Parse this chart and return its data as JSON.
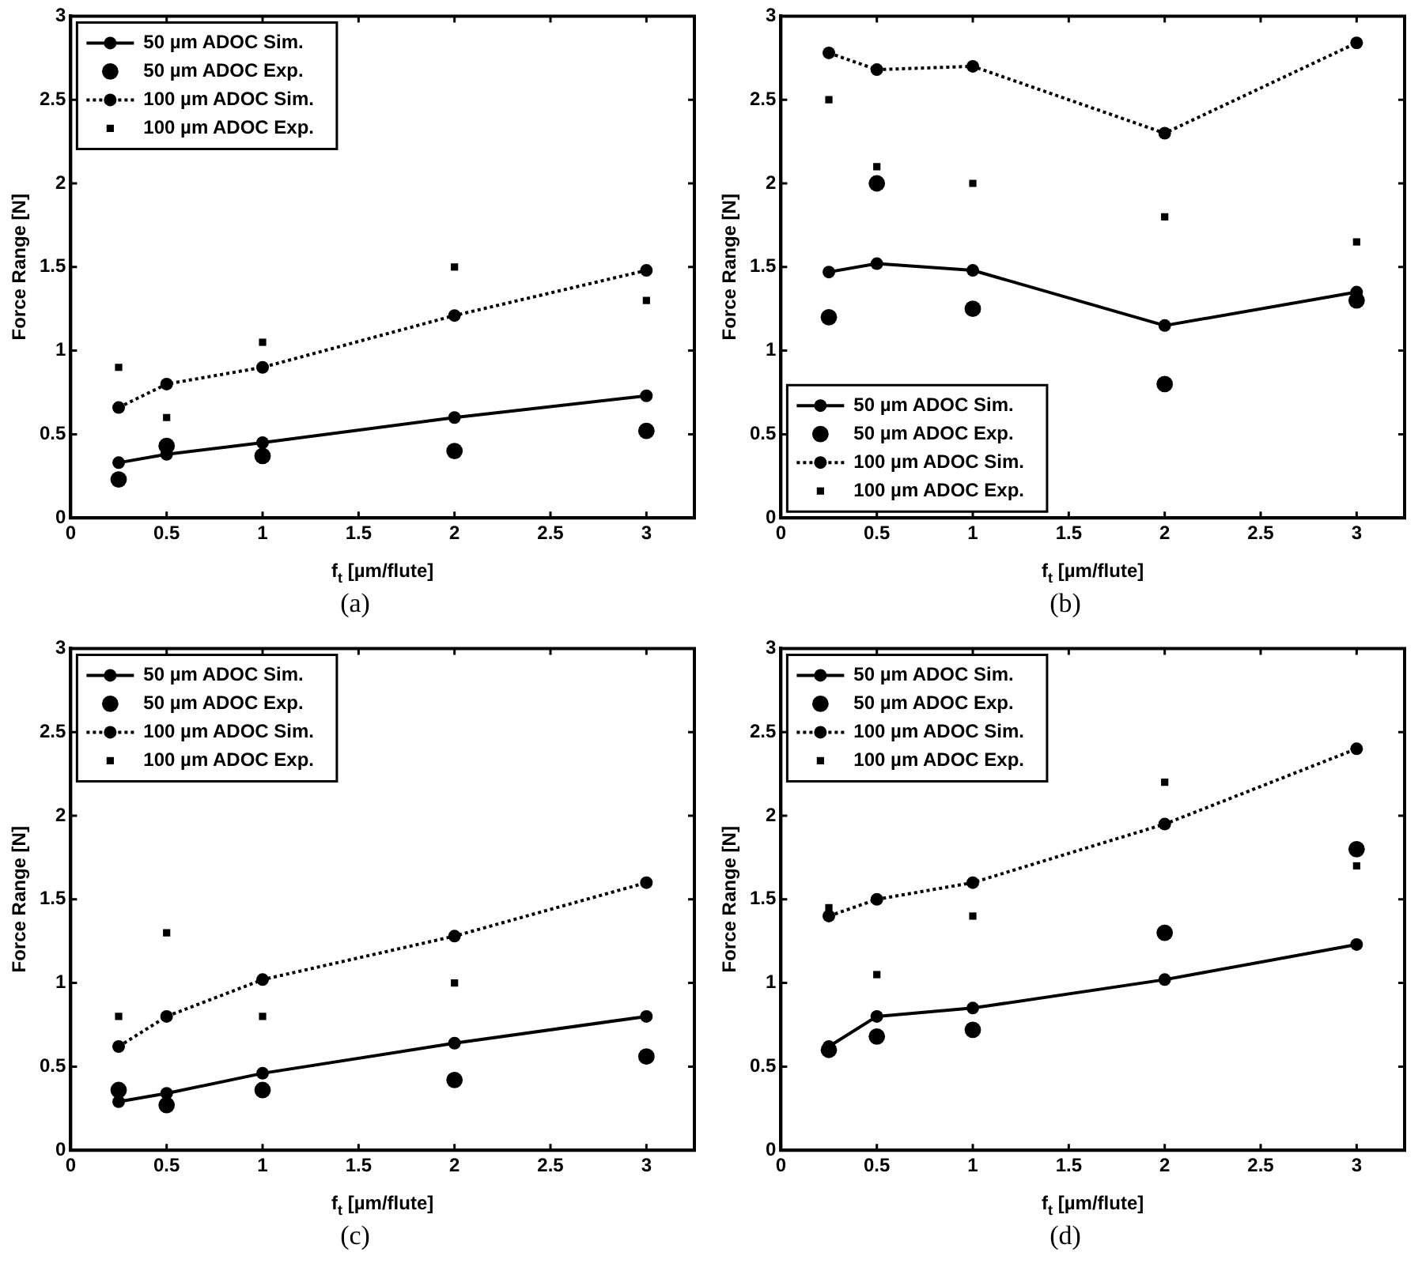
{
  "chart_data": [
    {
      "type": "line",
      "xlabel": "f$_{t}$ [µm/flute]",
      "ylabel": "Force Range [N]",
      "annotations": [
        "(a)"
      ],
      "x": [
        0.25,
        0.5,
        1,
        2,
        3
      ],
      "xlim": [
        0,
        3.25
      ],
      "xticks": [
        0,
        0.5,
        1,
        1.5,
        2,
        2.5,
        3
      ],
      "ylim": [
        0,
        3
      ],
      "yticks": [
        0,
        0.5,
        1,
        1.5,
        2,
        2.5,
        3
      ],
      "grid": false,
      "legend": "top left",
      "series": [
        {
          "name": "50 µm ADOC Sim.",
          "type": "line",
          "color": "#000000",
          "marker": "circle",
          "line_style": "solid",
          "values": [
            0.33,
            0.38,
            0.45,
            0.6,
            0.73
          ]
        },
        {
          "name": "50 µm ADOC Exp.",
          "type": "scatter",
          "color": "#000000",
          "marker": "circle",
          "values": [
            0.23,
            0.43,
            0.37,
            0.4,
            0.52
          ]
        },
        {
          "name": "100 µm ADOC Sim.",
          "type": "line",
          "color": "#000000",
          "marker": "circle",
          "line_style": "dotted",
          "values": [
            0.66,
            0.8,
            0.9,
            1.21,
            1.48
          ]
        },
        {
          "name": "100 µm ADOC Exp.",
          "type": "scatter",
          "color": "#000000",
          "marker": "square",
          "values": [
            0.9,
            0.6,
            1.05,
            1.5,
            1.3
          ]
        }
      ]
    },
    {
      "type": "line",
      "xlabel": "f$_{t}$ [µm/flute]",
      "ylabel": "Force Range [N]",
      "annotations": [
        "(b)"
      ],
      "x": [
        0.25,
        0.5,
        1,
        2,
        3
      ],
      "xlim": [
        0,
        3.25
      ],
      "xticks": [
        0,
        0.5,
        1,
        1.5,
        2,
        2.5,
        3
      ],
      "ylim": [
        0,
        3
      ],
      "yticks": [
        0,
        0.5,
        1,
        1.5,
        2,
        2.5,
        3
      ],
      "grid": false,
      "legend": "bottom left",
      "series": [
        {
          "name": "50 µm ADOC Sim.",
          "type": "line",
          "color": "#000000",
          "marker": "circle",
          "line_style": "solid",
          "values": [
            1.47,
            1.52,
            1.48,
            1.15,
            1.35
          ]
        },
        {
          "name": "50 µm ADOC Exp.",
          "type": "scatter",
          "color": "#000000",
          "marker": "circle",
          "values": [
            1.2,
            2.0,
            1.25,
            0.8,
            1.3
          ]
        },
        {
          "name": "100 µm ADOC Sim.",
          "type": "line",
          "color": "#000000",
          "marker": "circle",
          "line_style": "dotted",
          "values": [
            2.78,
            2.68,
            2.7,
            2.3,
            2.84
          ]
        },
        {
          "name": "100 µm ADOC Exp.",
          "type": "scatter",
          "color": "#000000",
          "marker": "square",
          "values": [
            2.5,
            2.1,
            2.0,
            1.8,
            1.65
          ]
        }
      ]
    },
    {
      "type": "line",
      "xlabel": "f$_{t}$ [µm/flute]",
      "ylabel": "Force Range [N]",
      "annotations": [
        "(c)"
      ],
      "x": [
        0.25,
        0.5,
        1,
        2,
        3
      ],
      "xlim": [
        0,
        3.25
      ],
      "xticks": [
        0,
        0.5,
        1,
        1.5,
        2,
        2.5,
        3
      ],
      "ylim": [
        0,
        3
      ],
      "yticks": [
        0,
        0.5,
        1,
        1.5,
        2,
        2.5,
        3
      ],
      "grid": false,
      "legend": "top left",
      "series": [
        {
          "name": "50 µm ADOC Sim.",
          "type": "line",
          "color": "#000000",
          "marker": "circle",
          "line_style": "solid",
          "values": [
            0.29,
            0.34,
            0.46,
            0.64,
            0.8
          ]
        },
        {
          "name": "50 µm ADOC Exp.",
          "type": "scatter",
          "color": "#000000",
          "marker": "circle",
          "values": [
            0.36,
            0.27,
            0.36,
            0.42,
            0.56
          ]
        },
        {
          "name": "100 µm ADOC Sim.",
          "type": "line",
          "color": "#000000",
          "marker": "circle",
          "line_style": "dotted",
          "values": [
            0.62,
            0.8,
            1.02,
            1.28,
            1.6
          ]
        },
        {
          "name": "100 µm ADOC Exp.",
          "type": "scatter",
          "color": "#000000",
          "marker": "square",
          "values": [
            0.8,
            1.3,
            0.8,
            1.0,
            1.6
          ]
        }
      ]
    },
    {
      "type": "line",
      "xlabel": "f$_{t}$ [µm/flute]",
      "ylabel": "Force Range [N]",
      "annotations": [
        "(d)"
      ],
      "x": [
        0.25,
        0.5,
        1,
        2,
        3
      ],
      "xlim": [
        0,
        3.25
      ],
      "xticks": [
        0,
        0.5,
        1,
        1.5,
        2,
        2.5,
        3
      ],
      "ylim": [
        0,
        3
      ],
      "yticks": [
        0,
        0.5,
        1,
        1.5,
        2,
        2.5,
        3
      ],
      "grid": false,
      "legend": "top left",
      "series": [
        {
          "name": "50 µm ADOC Sim.",
          "type": "line",
          "color": "#000000",
          "marker": "circle",
          "line_style": "solid",
          "values": [
            0.62,
            0.8,
            0.85,
            1.02,
            1.23
          ]
        },
        {
          "name": "50 µm ADOC Exp.",
          "type": "scatter",
          "color": "#000000",
          "marker": "circle",
          "values": [
            0.6,
            0.68,
            0.72,
            1.3,
            1.8
          ]
        },
        {
          "name": "100 µm ADOC Sim.",
          "type": "line",
          "color": "#000000",
          "marker": "circle",
          "line_style": "dotted",
          "values": [
            1.4,
            1.5,
            1.6,
            1.95,
            2.4
          ]
        },
        {
          "name": "100 µm ADOC Exp.",
          "type": "scatter",
          "color": "#000000",
          "marker": "square",
          "values": [
            1.45,
            1.05,
            1.4,
            2.2,
            1.7
          ]
        }
      ]
    }
  ]
}
